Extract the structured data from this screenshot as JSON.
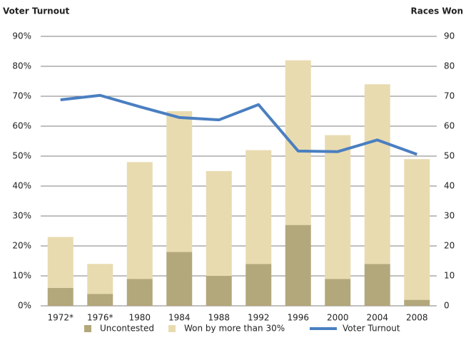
{
  "chart_data": {
    "type": "bar",
    "stacked": true,
    "y_label": "Voter Turnout",
    "y2_label": "Races Won",
    "categories": [
      "1972*",
      "1976*",
      "1980",
      "1984",
      "1988",
      "1992",
      "1996",
      "2000",
      "2004",
      "2008"
    ],
    "series": [
      {
        "name": "Uncontested",
        "type": "bar",
        "axis": "y2",
        "color": "#b3a87b",
        "values": [
          6,
          4,
          9,
          18,
          10,
          14,
          27,
          9,
          14,
          2
        ]
      },
      {
        "name": "Won by more than 30%",
        "type": "bar",
        "axis": "y2",
        "color": "#e9dbb0",
        "values": [
          17,
          10,
          39,
          47,
          35,
          38,
          55,
          48,
          60,
          47
        ]
      },
      {
        "name": "Voter Turnout",
        "type": "line",
        "color": "#4a7fc1",
        "values": [
          68.8,
          70.3,
          66.5,
          62.9,
          62.1,
          67.2,
          51.7,
          51.5,
          55.4,
          50.6
        ]
      }
    ],
    "ylim": [
      0,
      90
    ],
    "yticks": [
      {
        "value": 0,
        "label": "0%"
      },
      {
        "value": 10,
        "label": "10%"
      },
      {
        "value": 20,
        "label": "20%"
      },
      {
        "value": 30,
        "label": "30%"
      },
      {
        "value": 40,
        "label": "40%"
      },
      {
        "value": 50,
        "label": "50%"
      },
      {
        "value": 60,
        "label": "60%"
      },
      {
        "value": 70,
        "label": "70%"
      },
      {
        "value": 80,
        "label": "80%"
      },
      {
        "value": 90,
        "label": "90%"
      }
    ],
    "y2lim": [
      0,
      90
    ],
    "y2ticks": [
      0,
      10,
      20,
      30,
      40,
      50,
      60,
      70,
      80,
      90
    ],
    "grid": true,
    "legend": "bottom"
  }
}
